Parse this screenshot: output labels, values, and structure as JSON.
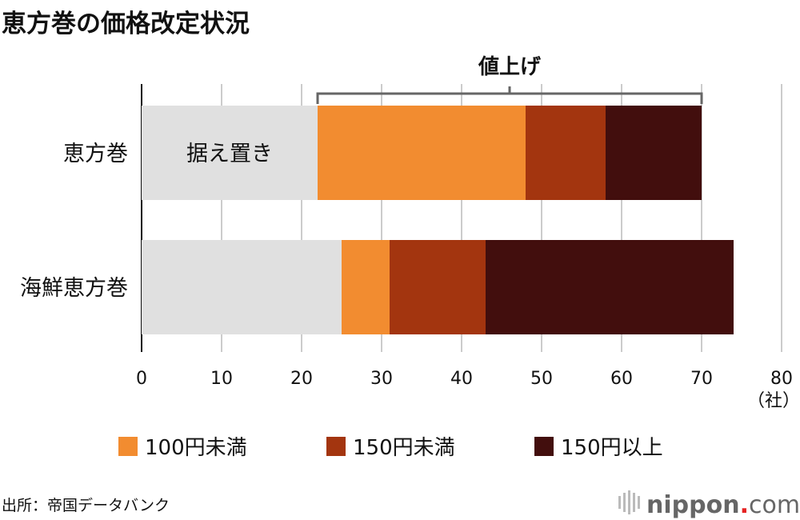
{
  "chart_data": {
    "type": "bar",
    "orientation": "horizontal",
    "stacked": true,
    "title": "恵方巻の価格改定状況",
    "categories": [
      "恵方巻",
      "海鮮恵方巻"
    ],
    "series": [
      {
        "name": "据え置き",
        "values": [
          22,
          25
        ],
        "color": "#e0e0e0"
      },
      {
        "name": "100円未満",
        "values": [
          26,
          6
        ],
        "color": "#f28c30"
      },
      {
        "name": "150円未満",
        "values": [
          10,
          12
        ],
        "color": "#a3350f"
      },
      {
        "name": "150円以上",
        "values": [
          12,
          31
        ],
        "color": "#420e0d"
      }
    ],
    "xlim": [
      0,
      80
    ],
    "xticks": [
      0,
      10,
      20,
      30,
      40,
      50,
      60,
      70,
      80
    ],
    "xunit": "（社）",
    "grid": true,
    "bracket_label": "値上げ",
    "inbar_label": "据え置き",
    "legend": [
      "100円未満",
      "150円未満",
      "150円以上"
    ],
    "legend_placement": "bottom",
    "source": "出所：帝国データバンク",
    "logo": "nippon.com"
  }
}
